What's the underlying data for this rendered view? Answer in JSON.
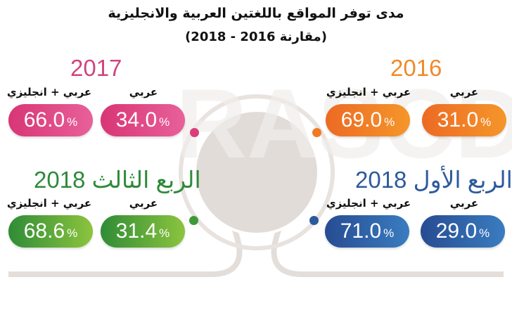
{
  "title": "مدى توفر المواقع باللغتين العربية والانجليزية",
  "subtitle": "(مقارنة 2016 - 2018)",
  "watermark": "RASCD",
  "colors": {
    "2016": "#f07b22",
    "2017": "#d93d7a",
    "q1_2018": "#2c5a9e",
    "q3_2018": "#3d9a3a"
  },
  "chart_data": {
    "type": "table",
    "title": "مدى توفر المواقع باللغتين العربية والانجليزية",
    "subtitle": "(مقارنة 2016 - 2018)",
    "columns": [
      "عربي",
      "عربي + انجليزي"
    ],
    "groups": [
      {
        "label": "2016",
        "arabic": {
          "value": "31.0",
          "unit": "%"
        },
        "both": {
          "value": "69.0",
          "unit": "%"
        }
      },
      {
        "label": "2017",
        "arabic": {
          "value": "34.0",
          "unit": "%"
        },
        "both": {
          "value": "66.0",
          "unit": "%"
        }
      },
      {
        "label": "الربع الأول 2018",
        "arabic": {
          "value": "29.0",
          "unit": "%"
        },
        "both": {
          "value": "71.0",
          "unit": "%"
        }
      },
      {
        "label": "الربع الثالث 2018",
        "arabic": {
          "value": "31.4",
          "unit": "%"
        },
        "both": {
          "value": "68.6",
          "unit": "%"
        }
      }
    ]
  }
}
